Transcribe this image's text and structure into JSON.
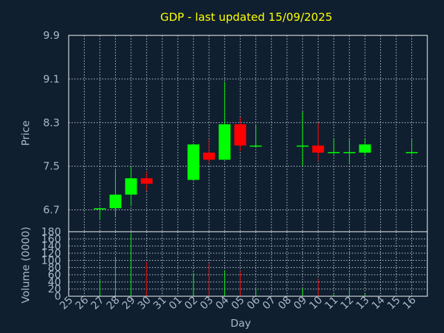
{
  "chart_data": [
    {
      "type": "candlestick",
      "title": "GDP - last updated 15/09/2025",
      "ylabel": "Price",
      "ylim": [
        6.3,
        9.9
      ],
      "yticks": [
        "9.9",
        "9.1",
        "8.3",
        "7.5",
        "6.7"
      ],
      "ytick_values": [
        9.9,
        9.1,
        8.3,
        7.5,
        6.7
      ],
      "grid": true,
      "up_color": "#00ff00",
      "down_color": "#ff0000",
      "candles": [
        {
          "day": "26",
          "open": 6.71,
          "high": 6.75,
          "low": 6.52,
          "close": 6.73
        },
        {
          "day": "27",
          "open": 6.73,
          "high": 7.43,
          "low": 6.58,
          "close": 6.98
        },
        {
          "day": "28",
          "open": 6.98,
          "high": 7.5,
          "low": 6.78,
          "close": 7.28
        },
        {
          "day": "29",
          "open": 7.28,
          "high": 7.4,
          "low": 7.05,
          "close": 7.18
        },
        {
          "day": "01",
          "open": 7.25,
          "high": 7.9,
          "low": 7.25,
          "close": 7.9
        },
        {
          "day": "02",
          "open": 7.75,
          "high": 8.0,
          "low": 7.55,
          "close": 7.62
        },
        {
          "day": "03",
          "open": 7.62,
          "high": 9.05,
          "low": 7.62,
          "close": 8.27
        },
        {
          "day": "04",
          "open": 8.27,
          "high": 8.4,
          "low": 7.78,
          "close": 7.88
        },
        {
          "day": "05",
          "open": 7.86,
          "high": 8.25,
          "low": 7.84,
          "close": 7.88
        },
        {
          "day": "08",
          "open": 7.86,
          "high": 8.5,
          "low": 7.5,
          "close": 7.88
        },
        {
          "day": "09",
          "open": 7.88,
          "high": 8.3,
          "low": 7.6,
          "close": 7.75
        },
        {
          "day": "10",
          "open": 7.74,
          "high": 8.0,
          "low": 7.72,
          "close": 7.76
        },
        {
          "day": "11",
          "open": 7.74,
          "high": 8.0,
          "low": 7.55,
          "close": 7.76
        },
        {
          "day": "12",
          "open": 7.75,
          "high": 8.0,
          "low": 7.68,
          "close": 7.9
        },
        {
          "day": "15",
          "open": 7.74,
          "high": 8.0,
          "low": 7.72,
          "close": 7.76
        }
      ]
    },
    {
      "type": "bar",
      "ylabel": "Volume (0000)",
      "ylim": [
        0,
        180
      ],
      "yticks": [
        "180",
        "160",
        "140",
        "120",
        "100",
        "80",
        "60",
        "40",
        "20",
        "0"
      ],
      "ytick_values": [
        180,
        160,
        140,
        120,
        100,
        80,
        60,
        40,
        20,
        0
      ],
      "xlabel": "Day",
      "categories": [
        "25",
        "26",
        "27",
        "28",
        "29",
        "30",
        "31",
        "01",
        "02",
        "03",
        "04",
        "05",
        "06",
        "07",
        "08",
        "09",
        "10",
        "11",
        "12",
        "13",
        "14",
        "15",
        "16"
      ],
      "volumes": [
        {
          "day": "26",
          "value": 47,
          "dir": "up"
        },
        {
          "day": "27",
          "value": 108,
          "dir": "up"
        },
        {
          "day": "28",
          "value": 175,
          "dir": "up"
        },
        {
          "day": "29",
          "value": 95,
          "dir": "down"
        },
        {
          "day": "01",
          "value": 65,
          "dir": "up"
        },
        {
          "day": "02",
          "value": 92,
          "dir": "down"
        },
        {
          "day": "03",
          "value": 72,
          "dir": "up"
        },
        {
          "day": "04",
          "value": 70,
          "dir": "down"
        },
        {
          "day": "05",
          "value": 20,
          "dir": "up"
        },
        {
          "day": "08",
          "value": 22,
          "dir": "up"
        },
        {
          "day": "09",
          "value": 48,
          "dir": "down"
        },
        {
          "day": "10",
          "value": 5,
          "dir": "up"
        },
        {
          "day": "11",
          "value": 22,
          "dir": "up"
        },
        {
          "day": "12",
          "value": 8,
          "dir": "up"
        },
        {
          "day": "15",
          "value": 3,
          "dir": "up"
        }
      ]
    }
  ]
}
